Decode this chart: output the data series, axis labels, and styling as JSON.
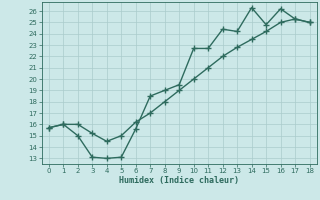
{
  "line1_x": [
    0,
    1,
    2,
    3,
    4,
    5,
    6,
    7,
    8,
    9,
    10,
    11,
    12,
    13,
    14,
    15,
    16,
    17,
    18
  ],
  "line1_y": [
    15.7,
    16.0,
    15.0,
    13.1,
    13.0,
    13.1,
    15.6,
    18.5,
    19.0,
    19.5,
    22.7,
    22.7,
    24.4,
    24.2,
    26.3,
    24.8,
    26.2,
    25.3,
    25.0
  ],
  "line2_x": [
    0,
    1,
    2,
    3,
    4,
    5,
    6,
    7,
    8,
    9,
    10,
    11,
    12,
    13,
    14,
    15,
    16,
    17,
    18
  ],
  "line2_y": [
    15.7,
    16.0,
    16.0,
    15.2,
    14.5,
    15.0,
    16.2,
    17.0,
    18.0,
    19.0,
    20.0,
    21.0,
    22.0,
    22.8,
    23.5,
    24.2,
    25.0,
    25.3,
    25.0
  ],
  "line_color": "#2e6b5e",
  "bg_color": "#cce8e8",
  "grid_color": "#aacccc",
  "xlabel": "Humidex (Indice chaleur)",
  "xlim": [
    -0.5,
    18.5
  ],
  "ylim": [
    12.5,
    26.8
  ],
  "xticks": [
    0,
    1,
    2,
    3,
    4,
    5,
    6,
    7,
    8,
    9,
    10,
    11,
    12,
    13,
    14,
    15,
    16,
    17,
    18
  ],
  "yticks": [
    13,
    14,
    15,
    16,
    17,
    18,
    19,
    20,
    21,
    22,
    23,
    24,
    25,
    26
  ],
  "marker": "+",
  "markersize": 4,
  "linewidth": 1.0,
  "tick_fontsize": 5.0,
  "xlabel_fontsize": 6.0
}
